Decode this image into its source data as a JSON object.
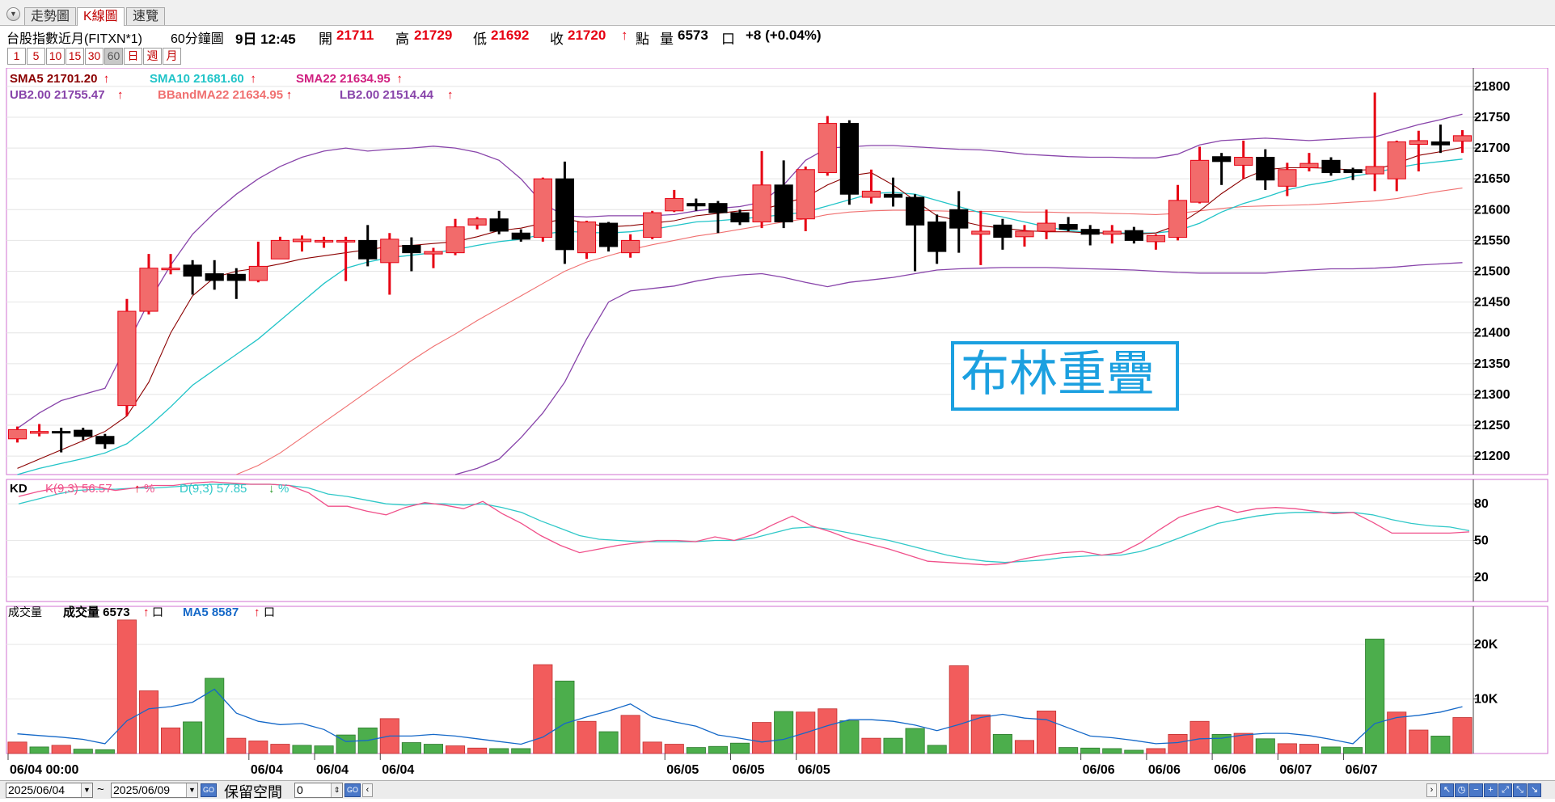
{
  "tabs": [
    "走勢圖",
    "K線圖",
    "速覽"
  ],
  "info": {
    "symbol": "台股指數近月(FITXN*1)",
    "period": "60分鐘圖",
    "time": "9日 12:45",
    "open_label": "開",
    "open": "21711",
    "high_label": "高",
    "high": "21729",
    "low_label": "低",
    "low": "21692",
    "close_label": "收",
    "close": "21720",
    "arrow": "↑",
    "point_label": "點",
    "vol_label": "量",
    "vol": "6573",
    "lot_unit": "口",
    "change": "+8 (+0.04%)"
  },
  "period_buttons": [
    "1",
    "5",
    "10",
    "15",
    "30",
    "60",
    "日",
    "週",
    "月"
  ],
  "colors": {
    "up": "#f26b6b",
    "up_border": "#e60012",
    "down": "#000000",
    "sma5": "#8b0000",
    "sma10": "#21c4c8",
    "sma22": "#f07070",
    "band": "#8844aa",
    "k": "#f0508a",
    "d": "#30c8c8",
    "vol_up": "#f25c5c",
    "vol_down": "#4cae4c",
    "vol_ma": "#1468c8",
    "watermark": "#1ba0e0"
  },
  "watermark": "布林重疊",
  "bottom": {
    "date_from": "2025/06/04",
    "tilde": "~",
    "date_to": "2025/06/09",
    "go": "GO",
    "reserve_label": "保留空間",
    "reserve_value": "0"
  },
  "chart_data": [
    {
      "type": "candlestick",
      "legend": {
        "sma5": "SMA5 21701.20",
        "sma10": "SMA10 21681.60",
        "sma22": "SMA22 21634.95",
        "ub": "UB2.00 21755.47",
        "bbma": "BBandMA22 21634.95",
        "lb": "LB2.00 21514.44",
        "arrow": "↑"
      },
      "ylim": [
        21170,
        21830
      ],
      "yticks": [
        21200,
        21250,
        21300,
        21350,
        21400,
        21450,
        21500,
        21550,
        21600,
        21650,
        21700,
        21750,
        21800
      ],
      "candles": [
        [
          21228,
          21248,
          21222,
          21243
        ],
        [
          21237,
          21252,
          21232,
          21240
        ],
        [
          21240,
          21246,
          21206,
          21238
        ],
        [
          21242,
          21246,
          21226,
          21232
        ],
        [
          21232,
          21236,
          21212,
          21220
        ],
        [
          21282,
          21455,
          21265,
          21435
        ],
        [
          21435,
          21528,
          21430,
          21505
        ],
        [
          21505,
          21528,
          21495,
          21505
        ],
        [
          21510,
          21518,
          21462,
          21492
        ],
        [
          21496,
          21518,
          21470,
          21485
        ],
        [
          21495,
          21505,
          21455,
          21485
        ],
        [
          21485,
          21548,
          21482,
          21508
        ],
        [
          21520,
          21556,
          21520,
          21550
        ],
        [
          21548,
          21558,
          21532,
          21552
        ],
        [
          21550,
          21556,
          21538,
          21550
        ],
        [
          21550,
          21556,
          21484,
          21550
        ],
        [
          21550,
          21575,
          21508,
          21520
        ],
        [
          21514,
          21562,
          21462,
          21552
        ],
        [
          21542,
          21555,
          21500,
          21530
        ],
        [
          21528,
          21538,
          21505,
          21532
        ],
        [
          21530,
          21585,
          21526,
          21572
        ],
        [
          21575,
          21588,
          21568,
          21585
        ],
        [
          21585,
          21598,
          21560,
          21565
        ],
        [
          21562,
          21568,
          21548,
          21552
        ],
        [
          21555,
          21652,
          21548,
          21650
        ],
        [
          21650,
          21678,
          21512,
          21535
        ],
        [
          21530,
          21582,
          21520,
          21580
        ],
        [
          21578,
          21580,
          21532,
          21540
        ],
        [
          21530,
          21560,
          21522,
          21550
        ],
        [
          21555,
          21598,
          21552,
          21595
        ],
        [
          21598,
          21632,
          21596,
          21618
        ],
        [
          21610,
          21618,
          21598,
          21606
        ],
        [
          21610,
          21614,
          21562,
          21595
        ],
        [
          21595,
          21600,
          21575,
          21580
        ],
        [
          21580,
          21695,
          21570,
          21640
        ],
        [
          21640,
          21680,
          21570,
          21580
        ],
        [
          21585,
          21670,
          21565,
          21665
        ],
        [
          21660,
          21752,
          21655,
          21740
        ],
        [
          21740,
          21745,
          21608,
          21625
        ],
        [
          21620,
          21665,
          21610,
          21630
        ],
        [
          21625,
          21652,
          21605,
          21620
        ],
        [
          21620,
          21625,
          21500,
          21575
        ],
        [
          21580,
          21592,
          21512,
          21532
        ],
        [
          21600,
          21630,
          21530,
          21570
        ],
        [
          21560,
          21598,
          21510,
          21565
        ],
        [
          21575,
          21585,
          21535,
          21555
        ],
        [
          21556,
          21575,
          21540,
          21565
        ],
        [
          21565,
          21600,
          21552,
          21578
        ],
        [
          21576,
          21588,
          21565,
          21568
        ],
        [
          21568,
          21575,
          21542,
          21560
        ],
        [
          21560,
          21575,
          21545,
          21565
        ],
        [
          21566,
          21572,
          21545,
          21550
        ],
        [
          21548,
          21560,
          21535,
          21558
        ],
        [
          21555,
          21640,
          21550,
          21615
        ],
        [
          21612,
          21702,
          21610,
          21680
        ],
        [
          21686,
          21692,
          21640,
          21678
        ],
        [
          21672,
          21712,
          21650,
          21685
        ],
        [
          21685,
          21698,
          21632,
          21648
        ],
        [
          21638,
          21676,
          21622,
          21665
        ],
        [
          21668,
          21692,
          21662,
          21675
        ],
        [
          21680,
          21685,
          21655,
          21660
        ],
        [
          21665,
          21668,
          21648,
          21660
        ],
        [
          21658,
          21790,
          21630,
          21670
        ],
        [
          21650,
          21712,
          21630,
          21710
        ],
        [
          21706,
          21728,
          21662,
          21712
        ],
        [
          21710,
          21738,
          21692,
          21705
        ],
        [
          21711,
          21729,
          21692,
          21720
        ]
      ],
      "sma5": [
        21180,
        21195,
        21210,
        21225,
        21240,
        21265,
        21320,
        21400,
        21460,
        21490,
        21500,
        21505,
        21512,
        21520,
        21525,
        21530,
        21535,
        21540,
        21542,
        21545,
        21548,
        21556,
        21566,
        21570,
        21578,
        21585,
        21578,
        21572,
        21574,
        21578,
        21582,
        21590,
        21594,
        21598,
        21600,
        21610,
        21620,
        21640,
        21655,
        21660,
        21640,
        21615,
        21590,
        21582,
        21574,
        21570,
        21566,
        21564,
        21564,
        21562,
        21562,
        21560,
        21562,
        21575,
        21598,
        21626,
        21650,
        21665,
        21668,
        21668,
        21667,
        21664,
        21665,
        21675,
        21688,
        21694,
        21701
      ],
      "sma10": [
        21170,
        21180,
        21188,
        21196,
        21205,
        21220,
        21248,
        21280,
        21315,
        21340,
        21365,
        21390,
        21420,
        21450,
        21480,
        21505,
        21515,
        21522,
        21526,
        21530,
        21535,
        21542,
        21548,
        21552,
        21560,
        21565,
        21563,
        21562,
        21564,
        21568,
        21574,
        21580,
        21582,
        21585,
        21588,
        21592,
        21596,
        21606,
        21616,
        21626,
        21628,
        21625,
        21615,
        21605,
        21595,
        21588,
        21580,
        21572,
        21566,
        21563,
        21562,
        21562,
        21562,
        21566,
        21578,
        21596,
        21610,
        21620,
        21632,
        21640,
        21646,
        21654,
        21660,
        21668,
        21674,
        21678,
        21682
      ],
      "sma22": [
        null,
        null,
        null,
        null,
        null,
        null,
        null,
        null,
        null,
        null,
        21170,
        21185,
        21205,
        21230,
        21255,
        21280,
        21305,
        21330,
        21355,
        21378,
        21398,
        21420,
        21440,
        21460,
        21480,
        21500,
        21515,
        21525,
        21535,
        21543,
        21550,
        21557,
        21562,
        21568,
        21574,
        21580,
        21585,
        21592,
        21596,
        21598,
        21599,
        21599,
        21598,
        21597,
        21597,
        21597,
        21596,
        21596,
        21595,
        21595,
        21594,
        21593,
        21592,
        21594,
        21598,
        21602,
        21605,
        21606,
        21607,
        21608,
        21610,
        21612,
        21614,
        21618,
        21624,
        21630,
        21635
      ],
      "ub": [
        21245,
        21270,
        21290,
        21300,
        21310,
        21380,
        21450,
        21510,
        21560,
        21595,
        21625,
        21650,
        21670,
        21685,
        21695,
        21700,
        21695,
        21698,
        21700,
        21703,
        21700,
        21693,
        21680,
        21650,
        21610,
        21590,
        21588,
        21590,
        21590,
        21590,
        21592,
        21598,
        21602,
        21605,
        21612,
        21640,
        21680,
        21700,
        21702,
        21704,
        21704,
        21702,
        21700,
        21698,
        21697,
        21694,
        21690,
        21688,
        21686,
        21685,
        21685,
        21684,
        21684,
        21690,
        21705,
        21712,
        21714,
        21716,
        21714,
        21712,
        21714,
        21716,
        21718,
        21728,
        21738,
        21746,
        21755
      ],
      "lb": [
        null,
        null,
        null,
        null,
        null,
        null,
        null,
        null,
        null,
        null,
        null,
        null,
        null,
        null,
        null,
        null,
        null,
        null,
        null,
        null,
        21170,
        21180,
        21195,
        21230,
        21270,
        21320,
        21390,
        21450,
        21468,
        21472,
        21476,
        21484,
        21490,
        21494,
        21496,
        21490,
        21482,
        21475,
        21482,
        21486,
        21490,
        21496,
        21502,
        21504,
        21505,
        21506,
        21506,
        21506,
        21505,
        21504,
        21503,
        21502,
        21500,
        21498,
        21497,
        21497,
        21497,
        21497,
        21500,
        21502,
        21504,
        21504,
        21505,
        21507,
        21510,
        21512,
        21514
      ]
    },
    {
      "type": "line",
      "label": "KD",
      "k_label": "K(9,3) 56.57",
      "d_label": "D(9,3) 57.85",
      "pct": "%",
      "ylim": [
        0,
        100
      ],
      "yticks": [
        20,
        50,
        80
      ],
      "k": [
        86,
        90,
        93,
        94,
        94,
        91,
        93,
        95,
        95,
        97,
        98,
        97,
        96,
        96,
        95,
        89,
        78,
        78,
        74,
        71,
        77,
        81,
        79,
        76,
        82,
        72,
        64,
        54,
        46,
        40,
        43,
        46,
        48,
        50,
        50,
        49,
        53,
        50,
        55,
        63,
        70,
        62,
        57,
        51,
        47,
        43,
        38,
        33,
        32,
        31,
        30,
        31,
        35,
        38,
        40,
        41,
        38,
        40,
        48,
        59,
        69,
        74,
        78,
        73,
        76,
        77,
        76,
        74,
        72,
        73,
        65,
        56,
        56,
        56,
        56,
        57
      ],
      "d": [
        80,
        84,
        88,
        91,
        92,
        92,
        93,
        93,
        94,
        95,
        96,
        96,
        96,
        96,
        95,
        93,
        88,
        86,
        83,
        80,
        79,
        80,
        80,
        79,
        80,
        77,
        73,
        66,
        60,
        54,
        51,
        50,
        49,
        49,
        49,
        49,
        50,
        50,
        52,
        56,
        60,
        61,
        59,
        56,
        53,
        50,
        46,
        42,
        38,
        35,
        33,
        32,
        33,
        34,
        36,
        37,
        38,
        38,
        41,
        46,
        52,
        58,
        64,
        67,
        70,
        72,
        73,
        73,
        73,
        73,
        71,
        67,
        64,
        62,
        61,
        58
      ]
    },
    {
      "type": "bar",
      "label": "成交量",
      "vol_label": "成交量 6573",
      "ma5_label": "MA5 8587",
      "ylim": [
        0,
        27000
      ],
      "yticks": [
        10000,
        20000
      ],
      "ytick_labels": [
        "10K",
        "20K"
      ],
      "values": [
        2100,
        1200,
        1500,
        800,
        700,
        24500,
        11500,
        4700,
        5800,
        13800,
        2800,
        2300,
        1700,
        1500,
        1400,
        3400,
        4700,
        6400,
        2000,
        1700,
        1400,
        1000,
        900,
        900,
        16300,
        13300,
        5900,
        4000,
        7000,
        2100,
        1700,
        1100,
        1300,
        1900,
        5700,
        7700,
        7600,
        8200,
        6000,
        2800,
        2800,
        4600,
        1500,
        16100,
        7100,
        3500,
        2400,
        7800,
        1100,
        1000,
        900,
        600,
        900,
        3500,
        5900,
        3500,
        3700,
        2700,
        1800,
        1700,
        1200,
        1100,
        21000,
        7600,
        4300,
        3200,
        6600
      ],
      "up": [
        1,
        0,
        1,
        0,
        0,
        1,
        1,
        1,
        0,
        0,
        1,
        1,
        1,
        0,
        0,
        0,
        0,
        1,
        0,
        0,
        1,
        1,
        0,
        0,
        1,
        0,
        1,
        0,
        1,
        1,
        1,
        0,
        0,
        0,
        1,
        0,
        1,
        1,
        0,
        1,
        0,
        0,
        0,
        1,
        1,
        0,
        1,
        1,
        0,
        0,
        0,
        0,
        1,
        1,
        1,
        0,
        1,
        0,
        1,
        1,
        0,
        0,
        0,
        1,
        1,
        0,
        1
      ],
      "ma5": [
        3600,
        3300,
        3000,
        2600,
        1800,
        6000,
        8200,
        8600,
        9400,
        11800,
        7400,
        5900,
        5300,
        5500,
        4400,
        2200,
        2400,
        3200,
        3200,
        3500,
        3200,
        2700,
        2200,
        1700,
        3000,
        5500,
        6700,
        7800,
        9100,
        6700,
        5800,
        5000,
        3400,
        2800,
        2100,
        2600,
        3800,
        5100,
        6200,
        6200,
        5900,
        5200,
        4200,
        5300,
        6600,
        7200,
        6500,
        6200,
        4700,
        3200,
        2900,
        2400,
        1800,
        2000,
        2700,
        2800,
        3400,
        3700,
        3700,
        3300,
        2600,
        1800,
        5500,
        6600,
        7000,
        7600,
        8587
      ],
      "x_labels": [
        [
          0,
          "06/04 00:00"
        ],
        [
          11,
          "06/04"
        ],
        [
          14,
          "06/04"
        ],
        [
          17,
          "06/04"
        ],
        [
          30,
          "06/05"
        ],
        [
          33,
          "06/05"
        ],
        [
          36,
          "06/05"
        ],
        [
          49,
          "06/06"
        ],
        [
          52,
          "06/06"
        ],
        [
          55,
          "06/06"
        ],
        [
          58,
          "06/07"
        ],
        [
          61,
          "06/07"
        ]
      ]
    }
  ]
}
